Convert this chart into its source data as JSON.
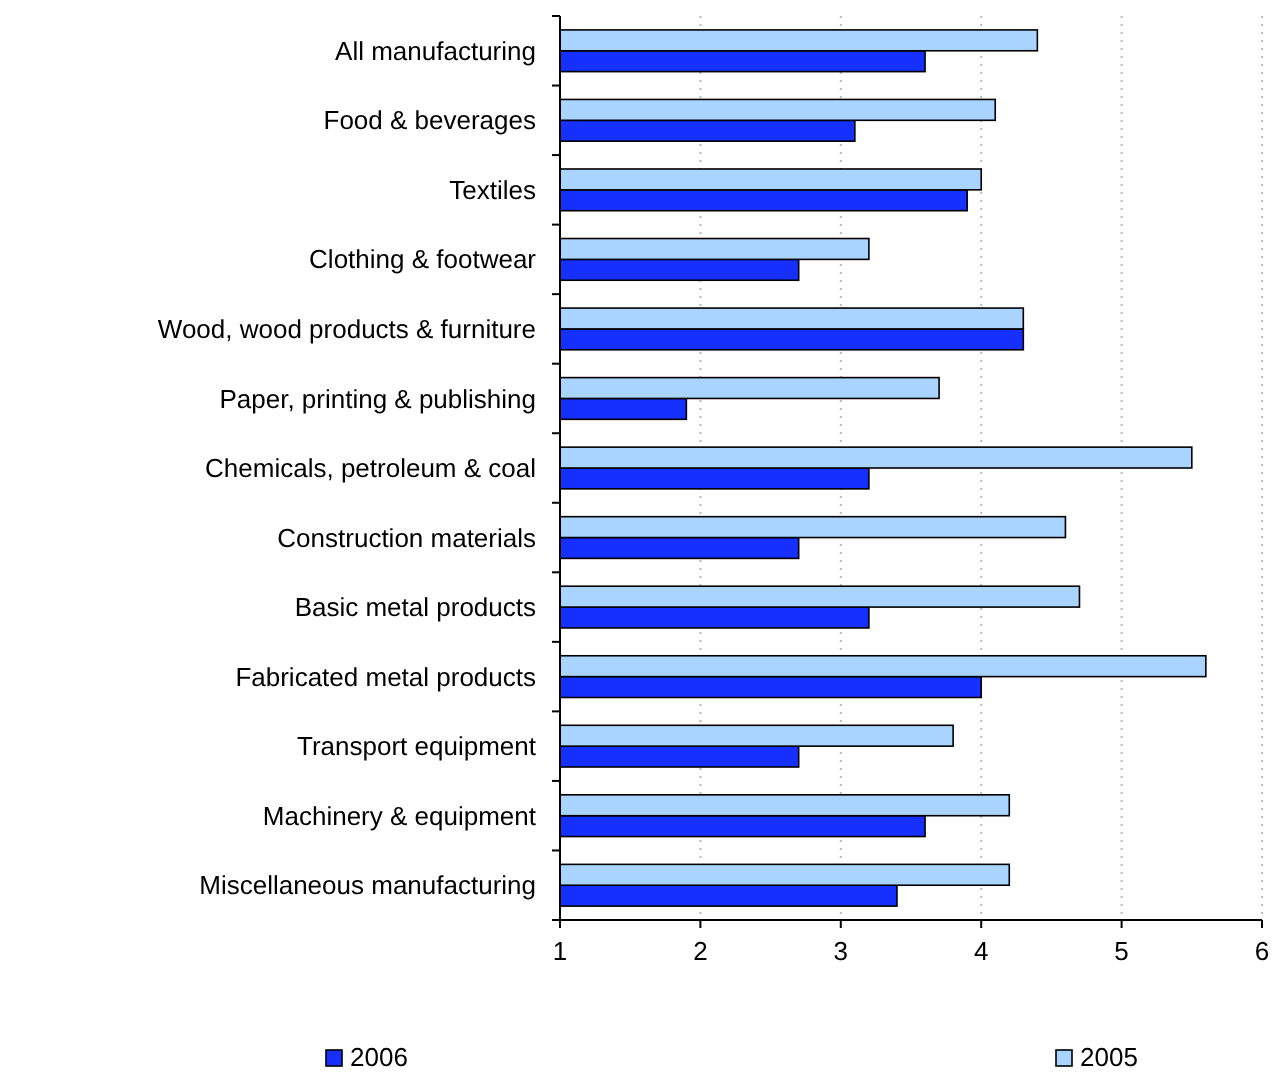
{
  "chart_data": {
    "type": "bar",
    "orientation": "horizontal",
    "categories": [
      "All manufacturing",
      "Food & beverages",
      "Textiles",
      "Clothing & footwear",
      "Wood, wood products & furniture",
      "Paper, printing & publishing",
      "Chemicals, petroleum & coal",
      "Construction materials",
      "Basic metal products",
      "Fabricated metal products",
      "Transport equipment",
      "Machinery & equipment",
      "Miscellaneous manufacturing"
    ],
    "series": [
      {
        "name": "2006",
        "color": "#1530ff",
        "values": [
          3.6,
          3.1,
          3.9,
          2.7,
          4.3,
          1.9,
          3.2,
          2.7,
          3.2,
          4.0,
          2.7,
          3.6,
          3.4
        ]
      },
      {
        "name": "2005",
        "color": "#a8d4ff",
        "values": [
          4.4,
          4.1,
          4.0,
          3.2,
          4.3,
          3.7,
          5.5,
          4.6,
          4.7,
          5.6,
          3.8,
          4.2,
          4.2
        ]
      }
    ],
    "xlim": [
      1,
      6
    ],
    "xticks": [
      1,
      2,
      3,
      4,
      5,
      6
    ],
    "grid": "x",
    "legend": "bottom"
  }
}
